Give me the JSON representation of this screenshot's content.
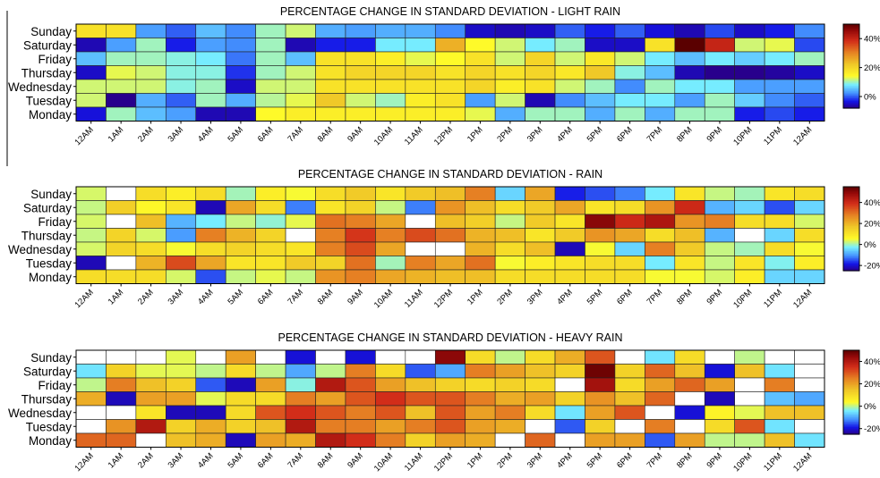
{
  "chart_data": [
    {
      "type": "heatmap",
      "title": "PERCENTAGE CHANGE IN STANDARD DEVIATION - LIGHT RAIN",
      "days": [
        "Sunday",
        "Saturday",
        "Friday",
        "Thursday",
        "Wednesday",
        "Tuesday",
        "Monday"
      ],
      "hours": [
        "12AM",
        "1AM",
        "2AM",
        "3AM",
        "4AM",
        "5AM",
        "6AM",
        "7AM",
        "8AM",
        "9AM",
        "10AM",
        "11AM",
        "12PM",
        "1PM",
        "2PM",
        "3PM",
        "4PM",
        "5PM",
        "6PM",
        "7PM",
        "8PM",
        "9PM",
        "10PM",
        "11PM",
        "12AM"
      ],
      "colorbar": {
        "ticks": [
          40,
          20,
          0
        ],
        "tick_labels": [
          "40%",
          "20%",
          "0%"
        ],
        "range": [
          -8,
          50
        ]
      },
      "values": [
        [
          18,
          18,
          3,
          0,
          5,
          2,
          10,
          12,
          4,
          3,
          4,
          4,
          2,
          -5,
          -6,
          -5,
          0,
          -3,
          0,
          -4,
          -6,
          -1,
          -5,
          -3,
          2
        ],
        [
          -6,
          3,
          10,
          -3,
          3,
          2,
          10,
          -6,
          -3,
          -3,
          8,
          8,
          25,
          14,
          12,
          8,
          10,
          -5,
          -5,
          18,
          52,
          40,
          12,
          13,
          -1
        ],
        [
          5,
          10,
          10,
          9,
          8,
          1,
          10,
          5,
          18,
          18,
          16,
          13,
          14,
          18,
          12,
          20,
          12,
          17,
          12,
          8,
          5,
          8,
          6,
          8,
          10
        ],
        [
          -5,
          13,
          12,
          9,
          9,
          -2,
          10,
          12,
          18,
          20,
          20,
          20,
          18,
          20,
          18,
          20,
          17,
          22,
          9,
          5,
          -6,
          -8,
          -8,
          -7,
          -5
        ],
        [
          12,
          12,
          12,
          9,
          10,
          -5,
          12,
          12,
          18,
          18,
          18,
          18,
          18,
          20,
          16,
          18,
          12,
          10,
          2,
          10,
          8,
          8,
          3,
          3,
          3
        ],
        [
          12,
          -8,
          4,
          0,
          10,
          4,
          11,
          13,
          22,
          12,
          10,
          16,
          18,
          3,
          12,
          -6,
          2,
          5,
          8,
          8,
          3,
          10,
          6,
          2,
          0
        ],
        [
          -4,
          10,
          5,
          3,
          -6,
          -6,
          14,
          16,
          16,
          16,
          16,
          16,
          16,
          13,
          4,
          10,
          10,
          4,
          10,
          4,
          10,
          10,
          -3,
          -1,
          -3
        ]
      ]
    },
    {
      "type": "heatmap",
      "title": "PERCENTAGE CHANGE IN STANDARD DEVIATION - RAIN",
      "days": [
        "Sunday",
        "Saturday",
        "Friday",
        "Thursday",
        "Wednesday",
        "Tuesday",
        "Monday"
      ],
      "hours": [
        "12AM",
        "1AM",
        "2AM",
        "3AM",
        "4AM",
        "5AM",
        "6AM",
        "7AM",
        "8AM",
        "9AM",
        "10AM",
        "11AM",
        "12PM",
        "1PM",
        "2PM",
        "3PM",
        "4PM",
        "5PM",
        "6PM",
        "7PM",
        "8PM",
        "9PM",
        "10PM",
        "11PM",
        "12AM"
      ],
      "colorbar": {
        "ticks": [
          40,
          20,
          0,
          -20
        ],
        "tick_labels": [
          "40%",
          "20%",
          "0%",
          "-20%"
        ],
        "range": [
          -25,
          55
        ]
      },
      "values": [
        [
          3,
          null,
          12,
          8,
          12,
          0,
          8,
          5,
          12,
          16,
          10,
          16,
          18,
          28,
          -5,
          22,
          -18,
          -15,
          -12,
          -3,
          10,
          2,
          0,
          10,
          12
        ],
        [
          2,
          15,
          6,
          10,
          -22,
          22,
          12,
          -12,
          10,
          14,
          2,
          -12,
          25,
          18,
          12,
          16,
          22,
          10,
          12,
          25,
          40,
          -8,
          -5,
          -15,
          -5
        ],
        [
          3,
          null,
          18,
          -8,
          -3,
          2,
          -1,
          4,
          30,
          28,
          22,
          null,
          18,
          15,
          2,
          16,
          10,
          50,
          40,
          45,
          25,
          28,
          12,
          12,
          3
        ],
        [
          2,
          14,
          3,
          -10,
          28,
          20,
          14,
          null,
          28,
          38,
          28,
          35,
          30,
          20,
          18,
          10,
          16,
          25,
          22,
          12,
          18,
          -8,
          null,
          -5,
          12
        ],
        [
          3,
          14,
          12,
          5,
          12,
          14,
          12,
          10,
          28,
          35,
          22,
          null,
          null,
          20,
          12,
          18,
          -22,
          5,
          -5,
          28,
          16,
          2,
          0,
          12,
          5
        ],
        [
          -22,
          null,
          20,
          35,
          22,
          10,
          10,
          16,
          14,
          30,
          0,
          28,
          22,
          30,
          5,
          8,
          10,
          12,
          12,
          -3,
          10,
          2,
          10,
          -2,
          8
        ],
        [
          12,
          12,
          12,
          3,
          -15,
          2,
          4,
          2,
          25,
          28,
          22,
          20,
          18,
          18,
          12,
          12,
          12,
          12,
          12,
          5,
          5,
          3,
          8,
          -5,
          -5
        ]
      ]
    },
    {
      "type": "heatmap",
      "title": "PERCENTAGE CHANGE IN STANDARD DEVIATION - HEAVY RAIN",
      "days": [
        "Sunday",
        "Saturday",
        "Friday",
        "Thursday",
        "Wednesday",
        "Tuesday",
        "Monday"
      ],
      "hours": [
        "12AM",
        "1AM",
        "2AM",
        "3AM",
        "4AM",
        "5AM",
        "6AM",
        "7AM",
        "8AM",
        "9AM",
        "10AM",
        "11AM",
        "12PM",
        "1PM",
        "2PM",
        "3PM",
        "4PM",
        "5PM",
        "6PM",
        "7PM",
        "8PM",
        "9PM",
        "10PM",
        "11PM",
        "12AM"
      ],
      "colorbar": {
        "ticks": [
          40,
          20,
          0,
          -20
        ],
        "tick_labels": [
          "40%",
          "20%",
          "0%",
          "-20%"
        ],
        "range": [
          -25,
          50
        ]
      },
      "values": [
        [
          null,
          null,
          null,
          2,
          null,
          20,
          null,
          -20,
          null,
          -20,
          null,
          null,
          45,
          10,
          0,
          10,
          18,
          30,
          null,
          -5,
          10,
          null,
          0,
          null,
          null
        ],
        [
          -5,
          12,
          2,
          2,
          0,
          10,
          0,
          -10,
          0,
          25,
          10,
          -15,
          -10,
          25,
          20,
          15,
          12,
          48,
          12,
          28,
          15,
          -20,
          15,
          -5,
          null
        ],
        [
          0,
          25,
          15,
          12,
          -15,
          -22,
          20,
          -3,
          40,
          30,
          20,
          15,
          12,
          10,
          12,
          10,
          null,
          42,
          10,
          20,
          28,
          20,
          null,
          25,
          null
        ],
        [
          18,
          -22,
          20,
          20,
          2,
          10,
          10,
          25,
          20,
          30,
          35,
          30,
          30,
          25,
          18,
          20,
          12,
          22,
          15,
          28,
          null,
          -22,
          null,
          -8,
          -10
        ],
        [
          null,
          null,
          8,
          -22,
          -22,
          10,
          30,
          35,
          30,
          25,
          30,
          15,
          30,
          20,
          25,
          10,
          -5,
          20,
          30,
          null,
          -20,
          5,
          2,
          15,
          15
        ],
        [
          null,
          22,
          40,
          12,
          18,
          12,
          15,
          40,
          25,
          25,
          20,
          25,
          30,
          20,
          18,
          null,
          -15,
          12,
          null,
          25,
          null,
          10,
          30,
          -5,
          null
        ],
        [
          28,
          28,
          null,
          15,
          18,
          -22,
          20,
          18,
          40,
          35,
          25,
          12,
          20,
          18,
          null,
          28,
          null,
          20,
          20,
          -15,
          20,
          0,
          0,
          15,
          -5
        ]
      ]
    }
  ]
}
